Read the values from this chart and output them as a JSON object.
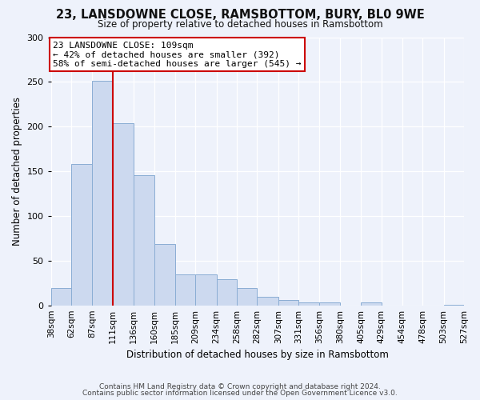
{
  "title": "23, LANSDOWNE CLOSE, RAMSBOTTOM, BURY, BL0 9WE",
  "subtitle": "Size of property relative to detached houses in Ramsbottom",
  "xlabel": "Distribution of detached houses by size in Ramsbottom",
  "ylabel": "Number of detached properties",
  "bar_edges": [
    38,
    62,
    87,
    111,
    136,
    160,
    185,
    209,
    234,
    258,
    282,
    307,
    331,
    356,
    380,
    405,
    429,
    454,
    478,
    503,
    527
  ],
  "bar_heights": [
    19,
    158,
    251,
    204,
    146,
    69,
    35,
    35,
    29,
    19,
    10,
    6,
    3,
    3,
    0,
    3,
    0,
    0,
    0,
    1
  ],
  "bar_color": "#ccd9ef",
  "bar_edge_color": "#8aadd4",
  "vline_x": 111,
  "vline_color": "#cc0000",
  "ylim": [
    0,
    300
  ],
  "annotation_line1": "23 LANSDOWNE CLOSE: 109sqm",
  "annotation_line2": "← 42% of detached houses are smaller (392)",
  "annotation_line3": "58% of semi-detached houses are larger (545) →",
  "footer_line1": "Contains HM Land Registry data © Crown copyright and database right 2024.",
  "footer_line2": "Contains public sector information licensed under the Open Government Licence v3.0.",
  "tick_labels": [
    "38sqm",
    "62sqm",
    "87sqm",
    "111sqm",
    "136sqm",
    "160sqm",
    "185sqm",
    "209sqm",
    "234sqm",
    "258sqm",
    "282sqm",
    "307sqm",
    "331sqm",
    "356sqm",
    "380sqm",
    "405sqm",
    "429sqm",
    "454sqm",
    "478sqm",
    "503sqm",
    "527sqm"
  ],
  "background_color": "#eef2fb",
  "plot_bg_color": "#eef2fb",
  "grid_color": "#ffffff",
  "yticks": [
    0,
    50,
    100,
    150,
    200,
    250,
    300
  ]
}
